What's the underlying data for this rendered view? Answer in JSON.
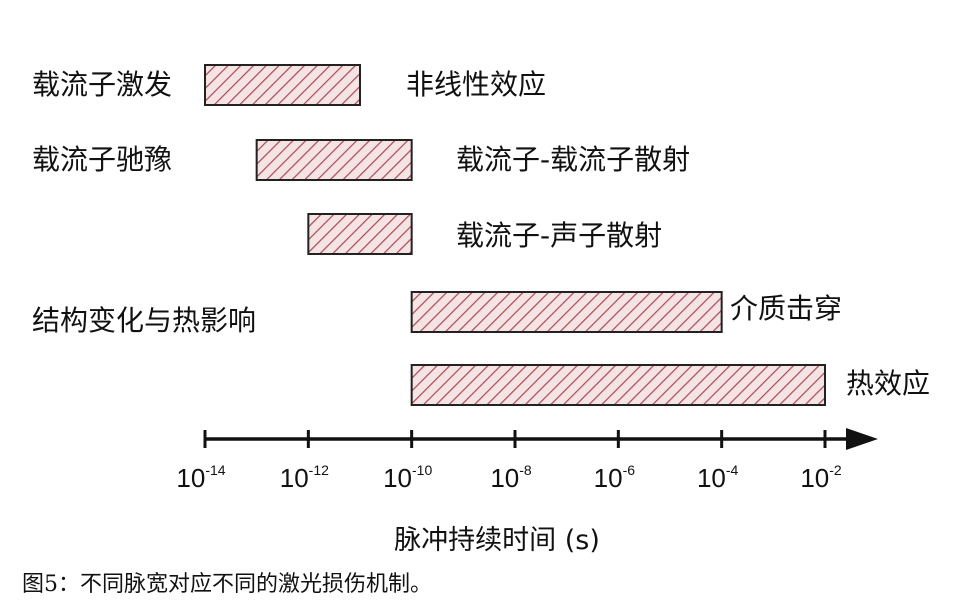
{
  "chart_data": {
    "type": "bar",
    "x_scale": "log",
    "xlabel": "脉冲持续时间 (s)",
    "xlim": [
      "1e-14",
      "1e-2"
    ],
    "ticks": [
      {
        "base": "10",
        "exp": "-14"
      },
      {
        "base": "10",
        "exp": "-12"
      },
      {
        "base": "10",
        "exp": "-10"
      },
      {
        "base": "10",
        "exp": "-8"
      },
      {
        "base": "10",
        "exp": "-6"
      },
      {
        "base": "10",
        "exp": "-4"
      },
      {
        "base": "10",
        "exp": "-2"
      }
    ],
    "bars": [
      {
        "label": "非线性效应",
        "x_start": 1e-14,
        "x_end": 1e-11
      },
      {
        "label": "载流子-载流子散射",
        "x_start": 1e-13,
        "x_end": 1e-10
      },
      {
        "label": "载流子-声子散射",
        "x_start": 1e-12,
        "x_end": 1e-10
      },
      {
        "label": "介质击穿",
        "x_start": 1e-10,
        "x_end": 0.0001
      },
      {
        "label": "热效应",
        "x_start": 1e-10,
        "x_end": 0.01
      }
    ],
    "group_labels": [
      "载流子激发",
      "载流子驰豫",
      "结构变化与热影响"
    ],
    "bar_fill": "#f6e3e3",
    "hatch_color": "#a84a55",
    "grid": false,
    "legend": "none"
  },
  "caption": "图5：不同脉宽对应不同的激光损伤机制。"
}
